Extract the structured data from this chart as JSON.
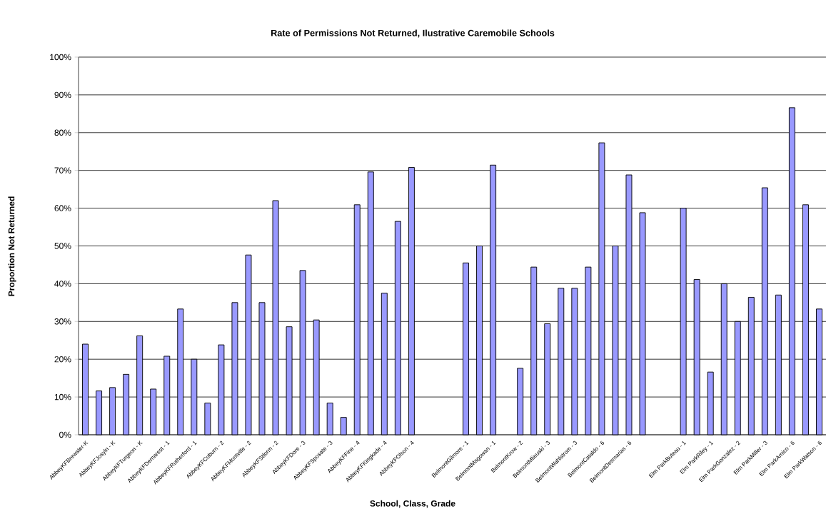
{
  "chart_data": {
    "type": "bar",
    "title": "Rate of Permissions Not Returned, Ilustrative Caremobile Schools",
    "xlabel": "School, Class, Grade",
    "ylabel": "Proportion Not Returned",
    "categories": [
      "AbbeyKFBrewster-K",
      null,
      "AbbeyKFJosyln - K",
      null,
      "AbbeyKFTurgeon - K",
      null,
      "AbbeyKFDemarest - 1",
      null,
      "AbbeyKFRutherford - 1",
      null,
      "AbbeyKFCoburn - 2",
      null,
      "AbbeyKFMontville - 2",
      null,
      "AbbeyKFStform - 2",
      null,
      "AbbeyKFDore - 3",
      null,
      "AbbeyKFSposate - 3",
      null,
      "AbbeyKFFine - 4",
      null,
      "AbbeyKFKingkade - 4",
      null,
      "AbbeyKFOlson - 4",
      null,
      null,
      null,
      "BelmontGilmore - 1",
      null,
      "BelmontMagowan - 1",
      null,
      "BelmontKrow - 2",
      null,
      "BelmontMlieuski - 3",
      null,
      "BelmontWahlstrom - 3",
      null,
      "BelmontCataldo - 6",
      null,
      "BelmontDesmarias - 6",
      null,
      null,
      null,
      "Elm ParkButeau - 1",
      null,
      "Elm ParkRiley - 1",
      null,
      "Elm ParkGonzalez - 2",
      null,
      "Elm ParkMiller - 3",
      null,
      "Elm ParkAmico - 6",
      null,
      "Elm ParkWatson - 6"
    ],
    "values": [
      24.0,
      11.6,
      12.5,
      16.0,
      26.2,
      12.1,
      20.8,
      33.3,
      20.0,
      8.4,
      23.8,
      35.0,
      47.6,
      35.0,
      62.0,
      28.6,
      43.5,
      30.4,
      8.4,
      4.6,
      60.9,
      69.6,
      37.5,
      56.5,
      70.8,
      null,
      null,
      null,
      45.5,
      50.0,
      71.4,
      null,
      17.6,
      44.4,
      29.4,
      38.8,
      38.8,
      44.4,
      77.3,
      50.0,
      68.8,
      58.8,
      null,
      null,
      60.0,
      41.1,
      16.6,
      40.0,
      30.0,
      36.4,
      65.4,
      37.0,
      86.6,
      60.9,
      33.3
    ],
    "color": "#9999ff",
    "ylim": [
      0,
      100
    ],
    "yticks": [
      {
        "value": 0,
        "label": "0%"
      },
      {
        "value": 10,
        "label": "10%"
      },
      {
        "value": 20,
        "label": "20%"
      },
      {
        "value": 30,
        "label": "30%"
      },
      {
        "value": 40,
        "label": "40%"
      },
      {
        "value": 50,
        "label": "50%"
      },
      {
        "value": 60,
        "label": "60%"
      },
      {
        "value": 70,
        "label": "70%"
      },
      {
        "value": 80,
        "label": "80%"
      },
      {
        "value": 90,
        "label": "90%"
      },
      {
        "value": 100,
        "label": "100%"
      }
    ],
    "grid": "y"
  }
}
